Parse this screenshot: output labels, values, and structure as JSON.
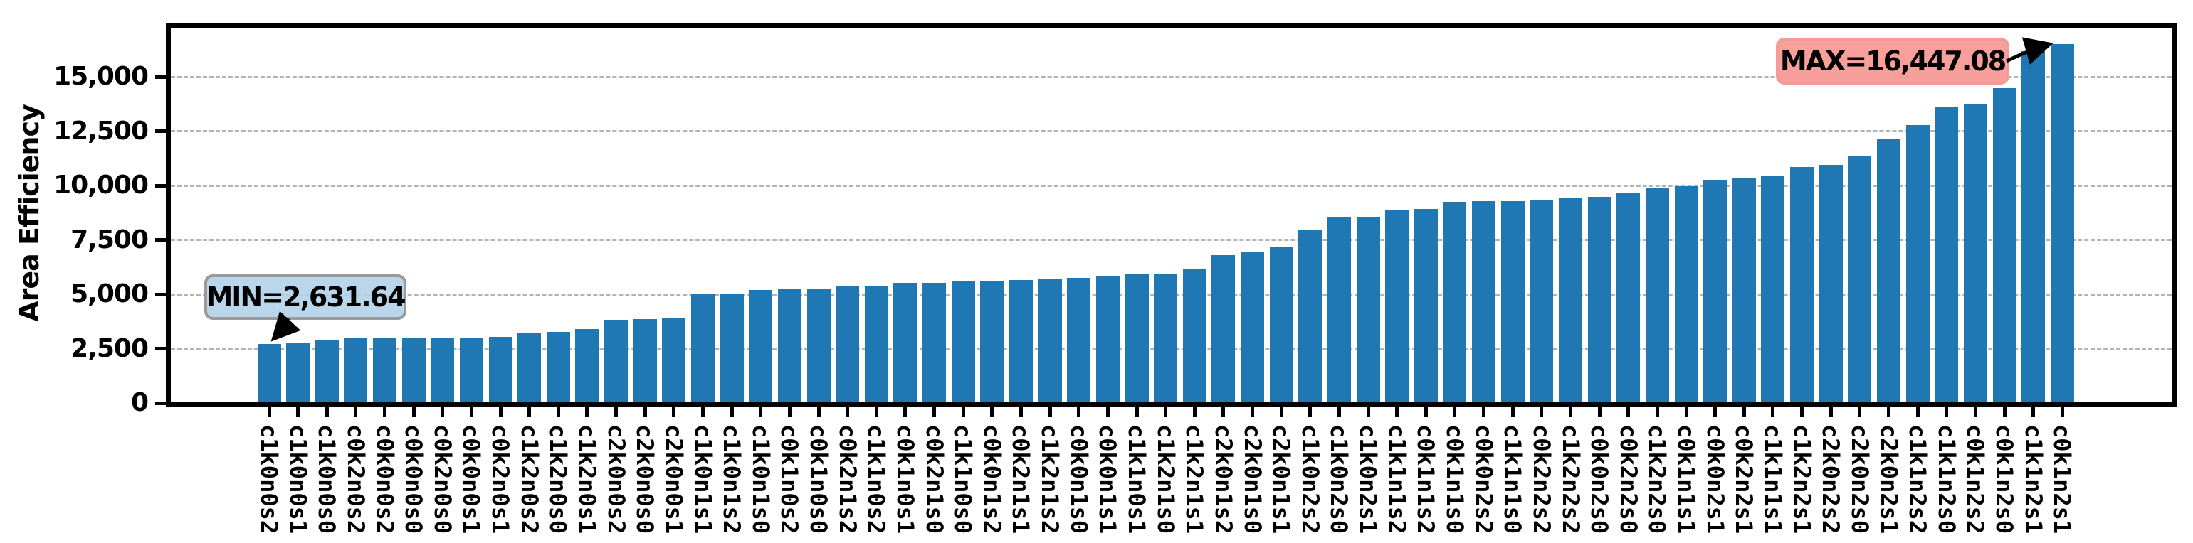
{
  "chart_data": {
    "type": "bar",
    "title": "",
    "xlabel": "",
    "ylabel": "Area Efficiency",
    "ylim": [
      0,
      17450
    ],
    "grid": true,
    "legend": "none",
    "bar_color": "#1f77b4",
    "grid_color": "#b3b3b3",
    "spine_color": "#000000",
    "background_color": "#ffffff",
    "yticks": [
      0,
      2500,
      5000,
      7500,
      10000,
      12500,
      15000
    ],
    "ytick_labels": [
      "0",
      "2,500",
      "5,000",
      "7,500",
      "10,000",
      "12,500",
      "15,000"
    ],
    "categories": [
      "c1k0n0s2",
      "c1k0n0s1",
      "c1k0n0s0",
      "c0k2n0s2",
      "c0k0n0s2",
      "c0k0n0s0",
      "c0k2n0s0",
      "c0k0n0s1",
      "c0k2n0s1",
      "c1k2n0s2",
      "c1k2n0s0",
      "c1k2n0s1",
      "c2k0n0s2",
      "c2k0n0s0",
      "c2k0n0s1",
      "c1k0n1s1",
      "c1k0n1s2",
      "c1k0n1s0",
      "c0k1n0s2",
      "c0k1n0s0",
      "c0k2n1s2",
      "c1k1n0s2",
      "c0k1n0s1",
      "c0k2n1s0",
      "c1k1n0s0",
      "c0k0n1s2",
      "c0k2n1s1",
      "c1k2n1s2",
      "c0k0n1s0",
      "c0k0n1s1",
      "c1k1n0s1",
      "c1k2n1s0",
      "c1k2n1s1",
      "c2k0n1s2",
      "c2k0n1s0",
      "c2k0n1s1",
      "c1k0n2s2",
      "c1k0n2s0",
      "c1k0n2s1",
      "c1k1n1s2",
      "c0k1n1s2",
      "c0k1n1s0",
      "c0k0n2s2",
      "c1k1n1s0",
      "c0k2n2s2",
      "c1k2n2s2",
      "c0k0n2s0",
      "c0k2n2s0",
      "c1k2n2s0",
      "c0k1n1s1",
      "c0k0n2s1",
      "c0k2n2s1",
      "c1k1n1s1",
      "c1k2n2s1",
      "c2k0n2s2",
      "c2k0n2s0",
      "c2k0n2s1",
      "c1k1n2s2",
      "c1k1n2s0",
      "c0k1n2s2",
      "c0k1n2s0",
      "c1k1n2s1",
      "c0k1n2s1"
    ],
    "values": [
      2631.64,
      2712.4,
      2820.9,
      2904.6,
      2910.2,
      2921.5,
      2931.8,
      2953.0,
      2986.1,
      3160.7,
      3216.9,
      3325.6,
      3761.8,
      3804.2,
      3848.5,
      4919.7,
      4927.9,
      5120.3,
      5151.6,
      5196.2,
      5333.8,
      5340.1,
      5455.2,
      5460.4,
      5508.0,
      5513.7,
      5576.3,
      5657.1,
      5673.9,
      5774.0,
      5858.7,
      5886.9,
      6113.2,
      6747.6,
      6866.0,
      7099.8,
      7875.7,
      8477.9,
      8485.1,
      8790.3,
      8864.9,
      9176.6,
      9208.8,
      9231.0,
      9288.4,
      9352.7,
      9407.1,
      9568.5,
      9838.2,
      9913.6,
      10183.0,
      10268.7,
      10356.4,
      10771.9,
      10883.1,
      11271.8,
      12087.2,
      12705.6,
      13531.9,
      13684.7,
      14400.3,
      16119.6,
      16447.08
    ],
    "annotations": [
      {
        "label": "MIN=2,631.64",
        "value": 2631.64,
        "target_category": "c1k0n0s2",
        "box_fill": "#b1d0e7",
        "box_border": "#9a9a9a"
      },
      {
        "label": "MAX=16,447.08",
        "value": 16447.08,
        "target_category": "c0k1n2s1",
        "box_fill": "#f69a96",
        "box_border": "#f69a96"
      }
    ]
  }
}
